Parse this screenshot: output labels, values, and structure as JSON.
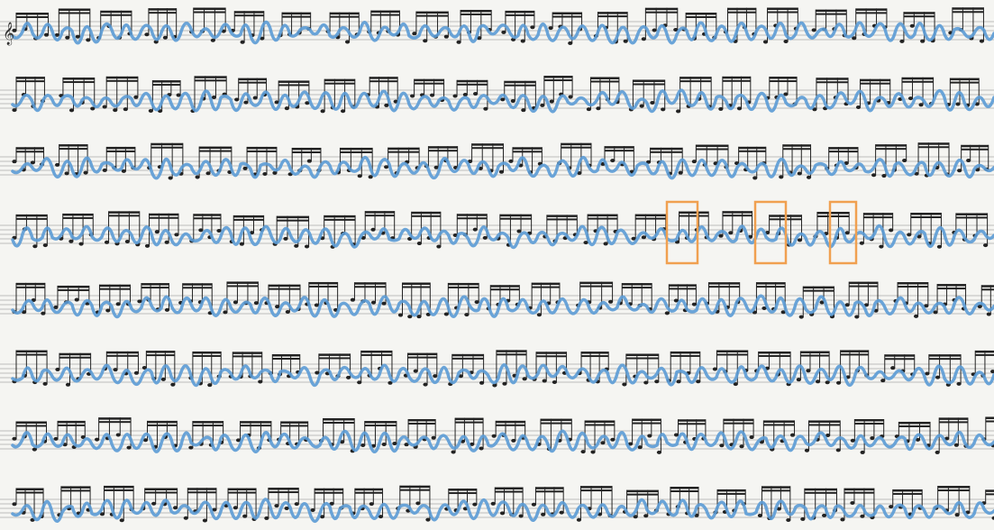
{
  "clef": "𝄞"
}
